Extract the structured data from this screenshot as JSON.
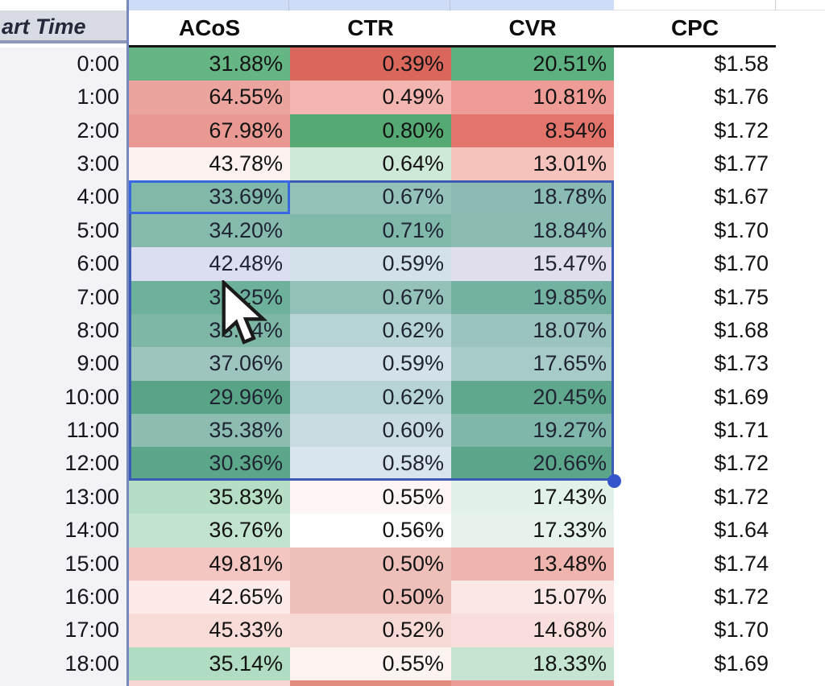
{
  "sheet": {
    "time_header": "art Time",
    "columns": [
      "ACoS",
      "CTR",
      "CVR",
      "CPC"
    ],
    "rows": [
      {
        "time": "0:00",
        "acos": "31.88%",
        "ctr": "0.39%",
        "cvr": "20.51%",
        "cpc": "$1.58",
        "colors": {
          "acos": "#66b584",
          "ctr": "#d9675c",
          "cvr": "#5db180"
        },
        "selected": false
      },
      {
        "time": "1:00",
        "acos": "64.55%",
        "ctr": "0.49%",
        "cvr": "10.81%",
        "cpc": "$1.76",
        "colors": {
          "acos": "#eca49e",
          "ctr": "#f3b5af",
          "cvr": "#ee9c95"
        },
        "selected": false
      },
      {
        "time": "2:00",
        "acos": "67.98%",
        "ctr": "0.80%",
        "cvr": "8.54%",
        "cpc": "$1.72",
        "colors": {
          "acos": "#e99992",
          "ctr": "#55a973",
          "cvr": "#e3746b"
        },
        "selected": false
      },
      {
        "time": "3:00",
        "acos": "43.78%",
        "ctr": "0.64%",
        "cvr": "13.01%",
        "cpc": "$1.77",
        "colors": {
          "acos": "#fdf2f0",
          "ctr": "#cfe9d8",
          "cvr": "#f6c2bc"
        },
        "selected": false
      },
      {
        "time": "4:00",
        "acos": "33.69%",
        "ctr": "0.67%",
        "cvr": "18.78%",
        "cpc": "$1.67",
        "colors": {
          "acos": "#88c39f",
          "ctr": "#9ecfb2",
          "cvr": "#93c8ab"
        },
        "selected": true
      },
      {
        "time": "5:00",
        "acos": "34.20%",
        "ctr": "0.71%",
        "cvr": "18.84%",
        "cpc": "$1.70",
        "colors": {
          "acos": "#8cc5a2",
          "ctr": "#86c4a0",
          "cvr": "#92c8aa"
        },
        "selected": true
      },
      {
        "time": "6:00",
        "acos": "42.48%",
        "ctr": "0.59%",
        "cvr": "15.47%",
        "cpc": "$1.70",
        "colors": {
          "acos": "#f2f0f4",
          "ctr": "#e8f3ec",
          "cvr": "#faf1f0"
        },
        "selected": true
      },
      {
        "time": "7:00",
        "acos": "31.25%",
        "ctr": "0.67%",
        "cvr": "19.85%",
        "cpc": "$1.75",
        "colors": {
          "acos": "#6fb98e",
          "ctr": "#9ecfb2",
          "cvr": "#76bb95"
        },
        "selected": true
      },
      {
        "time": "8:00",
        "acos": "33.64%",
        "ctr": "0.62%",
        "cvr": "18.07%",
        "cpc": "$1.68",
        "colors": {
          "acos": "#85c29d",
          "ctr": "#c8e4d3",
          "cvr": "#a5d1b7"
        },
        "selected": true
      },
      {
        "time": "9:00",
        "acos": "37.06%",
        "ctr": "0.59%",
        "cvr": "17.65%",
        "cpc": "$1.73",
        "colors": {
          "acos": "#a8d2b8",
          "ctr": "#e8f3ec",
          "cvr": "#b4d9c2"
        },
        "selected": true
      },
      {
        "time": "10:00",
        "acos": "29.96%",
        "ctr": "0.62%",
        "cvr": "20.45%",
        "cpc": "$1.69",
        "colors": {
          "acos": "#57ab76",
          "ctr": "#c8e4d3",
          "cvr": "#5fae7e"
        },
        "selected": true
      },
      {
        "time": "11:00",
        "acos": "35.38%",
        "ctr": "0.60%",
        "cvr": "19.27%",
        "cpc": "$1.71",
        "colors": {
          "acos": "#95c9a9",
          "ctr": "#dceee3",
          "cvr": "#85c2a0"
        },
        "selected": true
      },
      {
        "time": "12:00",
        "acos": "30.36%",
        "ctr": "0.58%",
        "cvr": "20.66%",
        "cpc": "$1.72",
        "colors": {
          "acos": "#5bad79",
          "ctr": "#eff7f1",
          "cvr": "#5aac7b"
        },
        "selected": true
      },
      {
        "time": "13:00",
        "acos": "35.83%",
        "ctr": "0.55%",
        "cvr": "17.43%",
        "cpc": "$1.72",
        "colors": {
          "acos": "#b5dec5",
          "ctr": "#fdf6f5",
          "cvr": "#e3f2e9"
        },
        "selected": false
      },
      {
        "time": "14:00",
        "acos": "36.76%",
        "ctr": "0.56%",
        "cvr": "17.33%",
        "cpc": "$1.64",
        "colors": {
          "acos": "#c2e3cf",
          "ctr": "#fefefe",
          "cvr": "#e6f3ea"
        },
        "selected": false
      },
      {
        "time": "15:00",
        "acos": "49.81%",
        "ctr": "0.50%",
        "cvr": "13.48%",
        "cpc": "$1.74",
        "colors": {
          "acos": "#f3c6c1",
          "ctr": "#efc0ba",
          "cvr": "#efb4ad"
        },
        "selected": false
      },
      {
        "time": "16:00",
        "acos": "42.65%",
        "ctr": "0.50%",
        "cvr": "15.07%",
        "cpc": "$1.72",
        "colors": {
          "acos": "#fcebe9",
          "ctr": "#efc0ba",
          "cvr": "#fbe8e6"
        },
        "selected": false
      },
      {
        "time": "17:00",
        "acos": "45.33%",
        "ctr": "0.52%",
        "cvr": "14.68%",
        "cpc": "$1.70",
        "colors": {
          "acos": "#f9dcd8",
          "ctr": "#f7d9d5",
          "cvr": "#f9dedb"
        },
        "selected": false
      },
      {
        "time": "18:00",
        "acos": "35.14%",
        "ctr": "0.55%",
        "cvr": "18.33%",
        "cpc": "$1.69",
        "colors": {
          "acos": "#b0dcc2",
          "ctr": "#fdf4f2",
          "cvr": "#c5e5d2"
        },
        "selected": false
      }
    ],
    "partial_row": {
      "colors": {
        "acos": "#f7d7d4",
        "ctr": "#e28b81",
        "cvr": "#ec9c94"
      }
    },
    "selection": {
      "first_row_time": "4:00",
      "last_row_time": "12:00",
      "first_column": "ACoS",
      "last_column": "CVR",
      "overlay_color": "rgba(98,130,225,0.16)",
      "border_color": "#3b5bb4",
      "active_cell_border_color": "#3a66e0",
      "handle_color": "#3354cb"
    },
    "strip_selected_color": "#cfdcf7",
    "frozen_line_color": "#7688bd"
  }
}
